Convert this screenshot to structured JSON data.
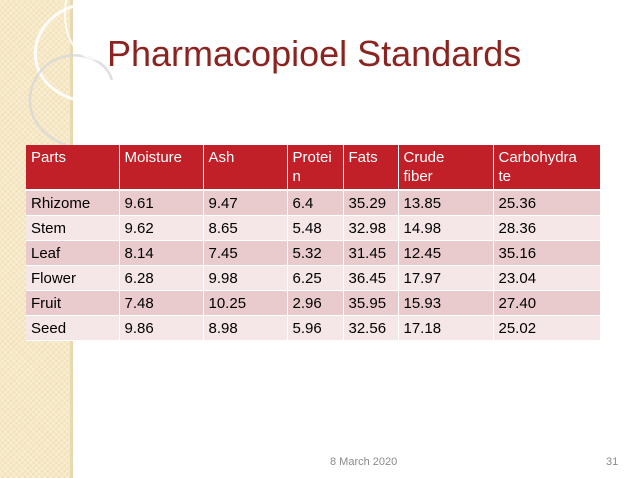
{
  "slide": {
    "title": "Pharmacopioel Standards",
    "footer_date": "8 March 2020",
    "page_number": "31"
  },
  "table": {
    "headers": [
      "Parts",
      "Moisture",
      "Ash",
      "Protei\nn",
      "Fats",
      "Crude\nfiber",
      "Carbohydra\nte"
    ],
    "rows": [
      [
        "Rhizome",
        "9.61",
        "9.47",
        "6.4",
        "35.29",
        "13.85",
        "25.36"
      ],
      [
        "Stem",
        "9.62",
        "8.65",
        "5.48",
        "32.98",
        "14.98",
        "28.36"
      ],
      [
        "Leaf",
        "8.14",
        "7.45",
        "5.32",
        "31.45",
        "12.45",
        "35.16"
      ],
      [
        "Flower",
        "6.28",
        "9.98",
        "6.25",
        "36.45",
        "17.97",
        "23.04"
      ],
      [
        "Fruit",
        "7.48",
        "10.25",
        "2.96",
        "35.95",
        "15.93",
        "27.40"
      ],
      [
        "Seed",
        "9.86",
        "8.98",
        "5.96",
        "32.56",
        "17.18",
        "25.02"
      ]
    ]
  },
  "colors": {
    "title": "#8b2320",
    "header_bg": "#c22028",
    "row_odd": "#e9cbcd",
    "row_even": "#f5e6e7",
    "side_stripe": "#f7e9c6"
  }
}
